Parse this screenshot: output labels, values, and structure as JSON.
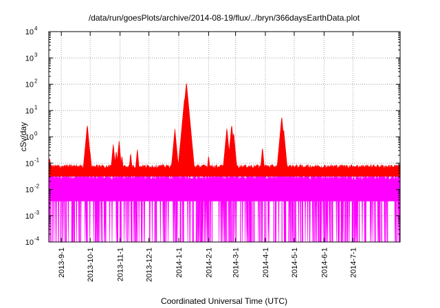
{
  "chart_data": {
    "type": "area",
    "title": "/data/run/goesPlots/archive/2014-08-19/flux/../bryn/366daysEarthData.plot",
    "xlabel": "Coordinated Universal Time (UTC)",
    "ylabel": "cSv/day",
    "yscale": "log",
    "ylim": [
      0.0001,
      10000
    ],
    "xlim": [
      "2013-08-19",
      "2014-08-19"
    ],
    "grid": true,
    "y_tick_labels": [
      "10",
      "10",
      "10",
      "10",
      "10",
      "10",
      "10",
      "10",
      "10"
    ],
    "y_tick_exponents": [
      "-4",
      "-3",
      "-2",
      "-1",
      "0",
      "1",
      "2",
      "3",
      "4"
    ],
    "y_tick_values": [
      0.0001,
      0.001,
      0.01,
      0.1,
      1,
      10,
      100,
      1000,
      10000
    ],
    "x_tick_labels": [
      "2013-9-1",
      "2013-10-1",
      "2013-11-1",
      "2013-12-1",
      "2014-1-1",
      "2014-2-1",
      "2014-3-1",
      "2014-4-1",
      "2014-5-1",
      "2014-6-1",
      "2014-7-1"
    ],
    "x_tick_dates": [
      "2013-09-01",
      "2013-10-01",
      "2013-11-01",
      "2013-12-01",
      "2014-01-01",
      "2014-02-01",
      "2014-03-01",
      "2014-04-01",
      "2014-05-01",
      "2014-06-01",
      "2014-07-01"
    ],
    "series": [
      {
        "color": "#ff0000",
        "baseline": 0.075,
        "peaks": [
          [
            "2013-08-20",
            0.17
          ],
          [
            "2013-09-28",
            3.0
          ],
          [
            "2013-10-01",
            0.25
          ],
          [
            "2013-10-25",
            0.55
          ],
          [
            "2013-10-28",
            0.3
          ],
          [
            "2013-10-31",
            0.7
          ],
          [
            "2013-11-03",
            0.2
          ],
          [
            "2013-11-12",
            0.25
          ],
          [
            "2013-11-19",
            0.35
          ],
          [
            "2013-12-28",
            2.0
          ],
          [
            "2014-01-07",
            30
          ],
          [
            "2014-01-09",
            120
          ],
          [
            "2014-01-11",
            6
          ],
          [
            "2014-02-01",
            0.2
          ],
          [
            "2014-02-20",
            2.2
          ],
          [
            "2014-02-25",
            3.0
          ],
          [
            "2014-02-27",
            1.5
          ],
          [
            "2014-03-29",
            0.4
          ],
          [
            "2014-04-18",
            6.0
          ],
          [
            "2014-04-20",
            2.0
          ]
        ]
      },
      {
        "color": "#1f78ff",
        "baseline": 0.062,
        "peaks": [
          [
            "2013-08-20",
            0.15
          ],
          [
            "2013-09-28",
            2.3
          ],
          [
            "2013-10-01",
            0.2
          ],
          [
            "2013-10-25",
            0.45
          ],
          [
            "2013-10-28",
            0.25
          ],
          [
            "2013-10-31",
            0.6
          ],
          [
            "2013-11-03",
            0.17
          ],
          [
            "2013-11-12",
            0.2
          ],
          [
            "2013-11-19",
            0.28
          ],
          [
            "2013-12-28",
            1.6
          ],
          [
            "2014-01-07",
            22
          ],
          [
            "2014-01-09",
            90
          ],
          [
            "2014-01-11",
            5
          ],
          [
            "2014-02-01",
            0.15
          ],
          [
            "2014-02-20",
            1.8
          ],
          [
            "2014-02-25",
            2.2
          ],
          [
            "2014-02-27",
            1.2
          ],
          [
            "2014-03-29",
            0.3
          ],
          [
            "2014-04-18",
            4.5
          ],
          [
            "2014-04-20",
            1.6
          ]
        ]
      },
      {
        "color": "#33cc66",
        "baseline": 0.045,
        "peaks": [
          [
            "2013-09-28",
            0.6
          ],
          [
            "2013-10-31",
            0.2
          ],
          [
            "2014-01-09",
            2.5
          ],
          [
            "2014-02-25",
            0.4
          ],
          [
            "2014-04-18",
            0.3
          ]
        ]
      },
      {
        "color": "#ff00ff",
        "baseline": 0.03,
        "floor": 0.0001,
        "peaks": []
      }
    ]
  }
}
